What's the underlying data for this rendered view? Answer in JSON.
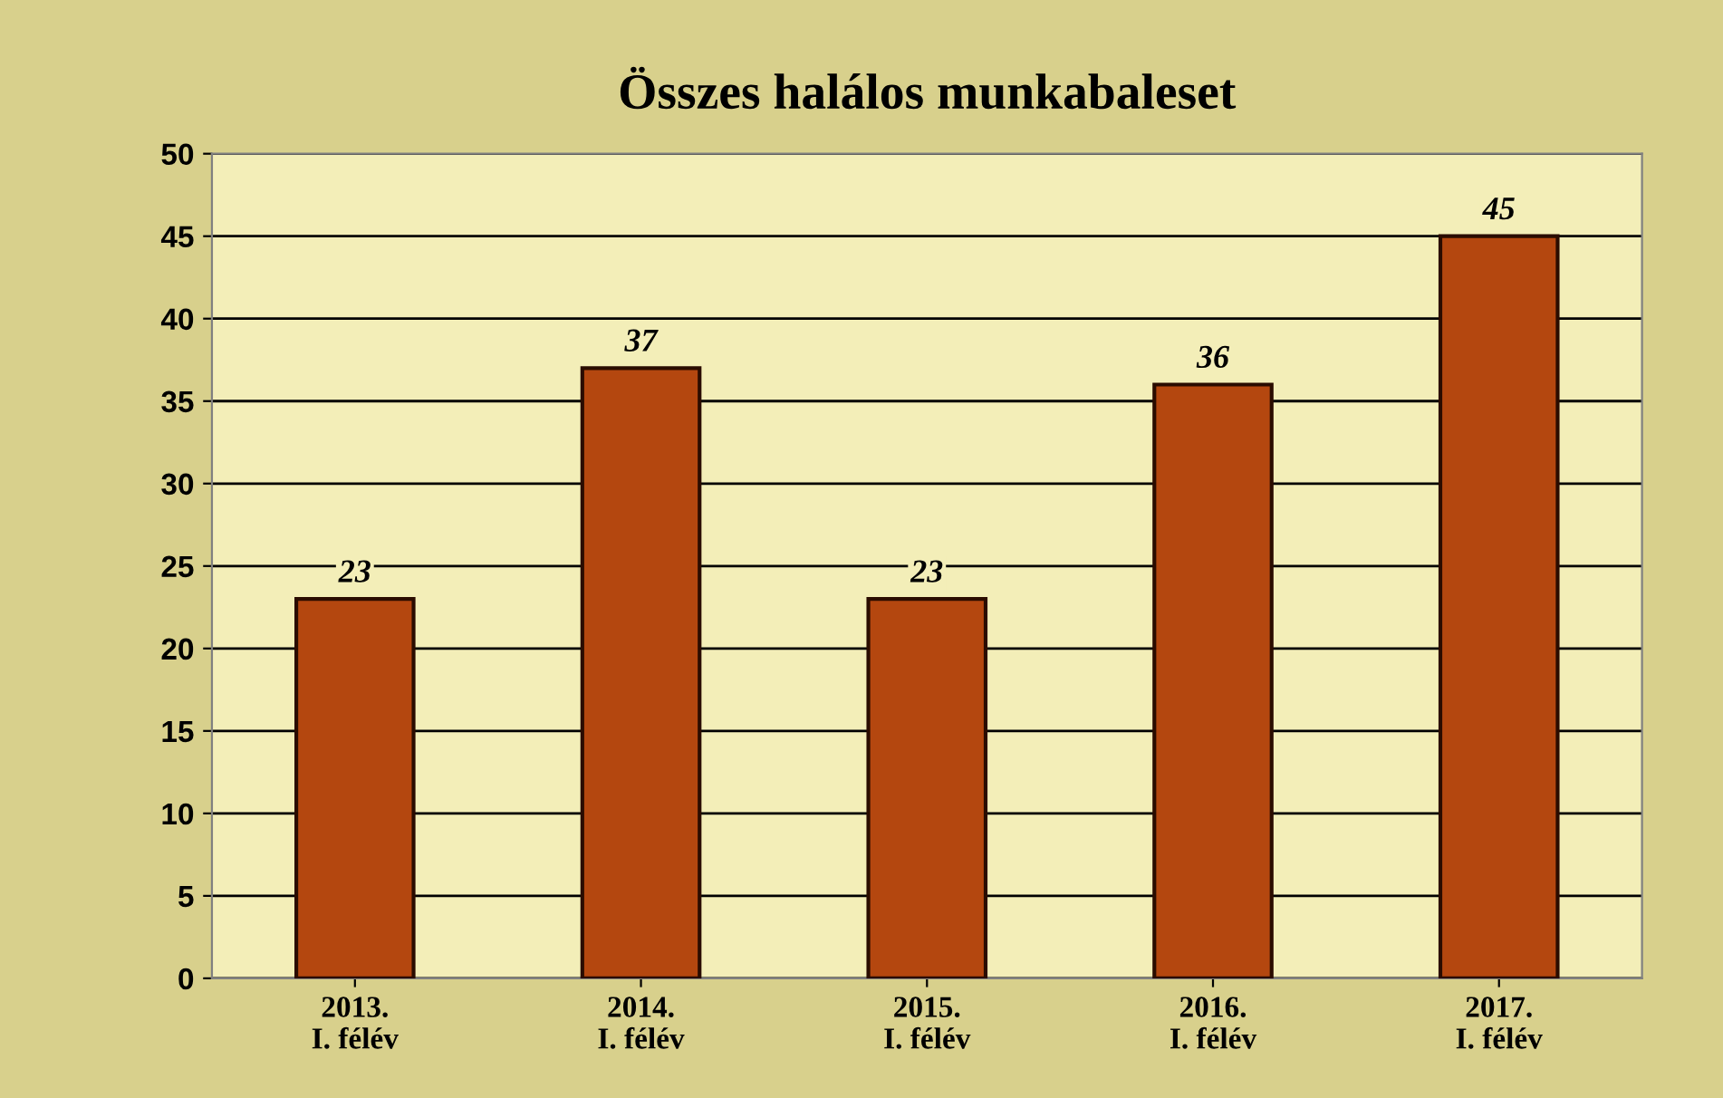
{
  "chart_data": {
    "type": "bar",
    "title": "Összes halálos munkabaleset",
    "categories": [
      "2013.\nI. félév",
      "2014.\nI. félév",
      "2015.\nI. félév",
      "2016.\nI. félév",
      "2017.\nI. félév"
    ],
    "values": [
      23,
      37,
      23,
      36,
      45
    ],
    "color": "#b4470f",
    "ylim": [
      0,
      50
    ],
    "yticks": [
      0,
      5,
      10,
      15,
      20,
      25,
      30,
      35,
      40,
      45,
      50
    ],
    "grid": "y",
    "data_labels": true
  }
}
